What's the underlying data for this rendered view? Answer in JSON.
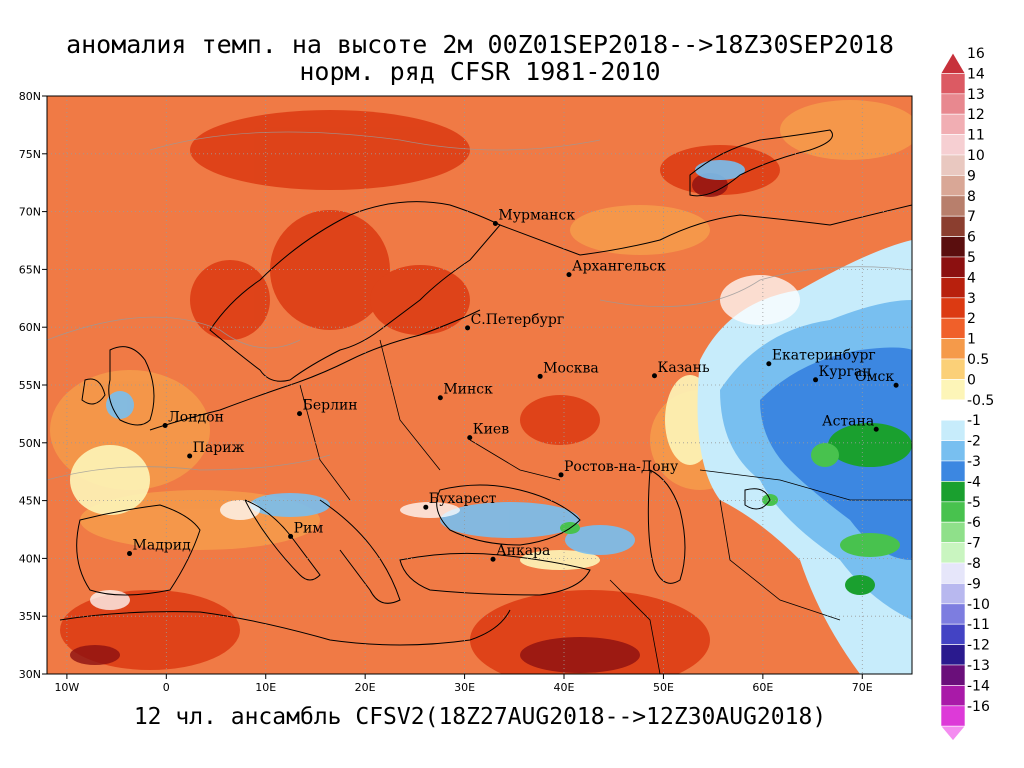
{
  "title": {
    "line1": "аномалия темп. на высоте 2м 00Z01SEP2018-->18Z30SEP2018",
    "line2": "норм. ряд CFSR 1981-2010"
  },
  "footer": "12 чл. ансамбль CFSV2(18Z27AUG2018-->12Z30AUG2018)",
  "map": {
    "lon_range": [
      -12,
      75
    ],
    "lat_range": [
      30,
      80
    ],
    "lon_ticks": [
      {
        "v": -10,
        "label": "10W"
      },
      {
        "v": 0,
        "label": "0"
      },
      {
        "v": 10,
        "label": "10E"
      },
      {
        "v": 20,
        "label": "20E"
      },
      {
        "v": 30,
        "label": "30E"
      },
      {
        "v": 40,
        "label": "40E"
      },
      {
        "v": 50,
        "label": "50E"
      },
      {
        "v": 60,
        "label": "60E"
      },
      {
        "v": 70,
        "label": "70E"
      }
    ],
    "lat_ticks": [
      {
        "v": 30,
        "label": "30N"
      },
      {
        "v": 35,
        "label": "35N"
      },
      {
        "v": 40,
        "label": "40N"
      },
      {
        "v": 45,
        "label": "45N"
      },
      {
        "v": 50,
        "label": "50N"
      },
      {
        "v": 55,
        "label": "55N"
      },
      {
        "v": 60,
        "label": "60N"
      },
      {
        "v": 65,
        "label": "65N"
      },
      {
        "v": 70,
        "label": "70N"
      },
      {
        "v": 75,
        "label": "75N"
      },
      {
        "v": 80,
        "label": "80N"
      }
    ],
    "background_color": "#f07a45",
    "cities": [
      {
        "name": "Мурманск",
        "lon": 33.1,
        "lat": 68.97
      },
      {
        "name": "Архангельск",
        "lon": 40.5,
        "lat": 64.55
      },
      {
        "name": "С.Петербург",
        "lon": 30.3,
        "lat": 59.94
      },
      {
        "name": "Москва",
        "lon": 37.6,
        "lat": 55.75
      },
      {
        "name": "Казань",
        "lon": 49.1,
        "lat": 55.8
      },
      {
        "name": "Екатеринбург",
        "lon": 60.6,
        "lat": 56.84
      },
      {
        "name": "Курган",
        "lon": 65.3,
        "lat": 55.45
      },
      {
        "name": "Омск",
        "lon": 73.4,
        "lat": 54.98
      },
      {
        "name": "Астана",
        "lon": 71.4,
        "lat": 51.17
      },
      {
        "name": "Минск",
        "lon": 27.56,
        "lat": 53.9
      },
      {
        "name": "Киев",
        "lon": 30.52,
        "lat": 50.45
      },
      {
        "name": "Берлин",
        "lon": 13.4,
        "lat": 52.52
      },
      {
        "name": "Лондон",
        "lon": -0.12,
        "lat": 51.5
      },
      {
        "name": "Париж",
        "lon": 2.35,
        "lat": 48.86
      },
      {
        "name": "Ростов-на-Дону",
        "lon": 39.7,
        "lat": 47.23
      },
      {
        "name": "Бухарест",
        "lon": 26.1,
        "lat": 44.43
      },
      {
        "name": "Рим",
        "lon": 12.5,
        "lat": 41.9
      },
      {
        "name": "Мадрид",
        "lon": -3.7,
        "lat": 40.42
      },
      {
        "name": "Анкара",
        "lon": 32.86,
        "lat": 39.93
      }
    ]
  },
  "colorbar": {
    "levels": [
      {
        "label": "16",
        "color": "#c7313b"
      },
      {
        "label": "14",
        "color": "#dc5a63"
      },
      {
        "label": "13",
        "color": "#e8888f"
      },
      {
        "label": "12",
        "color": "#f1aeb3"
      },
      {
        "label": "11",
        "color": "#f6cfd2"
      },
      {
        "label": "10",
        "color": "#e9c8c0"
      },
      {
        "label": "9",
        "color": "#d9a796"
      },
      {
        "label": "8",
        "color": "#b87f6c"
      },
      {
        "label": "7",
        "color": "#8b3e2f"
      },
      {
        "label": "6",
        "color": "#5a0e0e"
      },
      {
        "label": "5",
        "color": "#8c1010"
      },
      {
        "label": "4",
        "color": "#b8200d"
      },
      {
        "label": "3",
        "color": "#dc3a12"
      },
      {
        "label": "2",
        "color": "#f0602a"
      },
      {
        "label": "1",
        "color": "#f59a4a"
      },
      {
        "label": "0.5",
        "color": "#fbd078"
      },
      {
        "label": "0",
        "color": "#fdf5b8"
      },
      {
        "label": "-0.5",
        "color": "#ffffff"
      },
      {
        "label": "-1",
        "color": "#c7ecfb"
      },
      {
        "label": "-2",
        "color": "#78bff0"
      },
      {
        "label": "-3",
        "color": "#3c87e1"
      },
      {
        "label": "-4",
        "color": "#1aa02f"
      },
      {
        "label": "-5",
        "color": "#48c24e"
      },
      {
        "label": "-6",
        "color": "#8fe08a"
      },
      {
        "label": "-7",
        "color": "#c9f5c0"
      },
      {
        "label": "-8",
        "color": "#e6e6fa"
      },
      {
        "label": "-9",
        "color": "#b8b8ef"
      },
      {
        "label": "-10",
        "color": "#7d7de0"
      },
      {
        "label": "-11",
        "color": "#4343c4"
      },
      {
        "label": "-12",
        "color": "#2a1a8e"
      },
      {
        "label": "-13",
        "color": "#6a0f7a"
      },
      {
        "label": "-14",
        "color": "#a91aa8"
      },
      {
        "label": "-16",
        "color": "#dd3ad8"
      },
      {
        "label": "",
        "color": "#f48cf0"
      }
    ]
  }
}
